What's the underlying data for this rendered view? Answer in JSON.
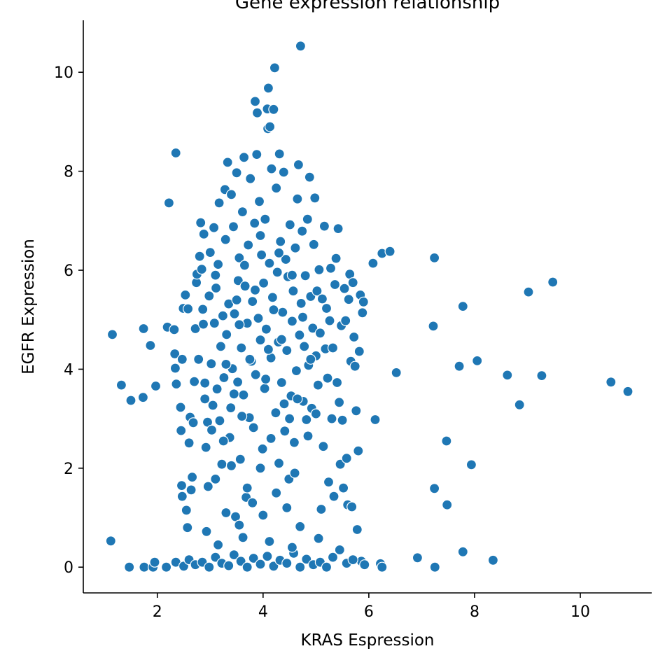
{
  "chart_data": {
    "type": "scatter",
    "title": "Gene expression relationship",
    "xlabel": "KRAS Espression",
    "ylabel": "EGFR Expression",
    "xlim": [
      0.6,
      11.35
    ],
    "ylim": [
      -0.52,
      11.05
    ],
    "xticks": [
      2,
      4,
      6,
      8,
      10
    ],
    "yticks": [
      0,
      2,
      4,
      6,
      8,
      10
    ],
    "grid": false,
    "marker_color": "#1f77b4",
    "marker_edge_color": "#ffffff",
    "series": [
      {
        "points": [
          [
            1.12,
            0.53
          ],
          [
            1.15,
            4.7
          ],
          [
            1.32,
            3.68
          ],
          [
            1.47,
            0.0
          ],
          [
            1.5,
            3.37
          ],
          [
            1.73,
            3.43
          ],
          [
            1.74,
            4.82
          ],
          [
            1.75,
            0.0
          ],
          [
            1.87,
            4.48
          ],
          [
            1.92,
            0.0
          ],
          [
            1.95,
            0.1
          ],
          [
            1.97,
            3.66
          ],
          [
            2.17,
            0.0
          ],
          [
            2.19,
            4.85
          ],
          [
            2.22,
            7.36
          ],
          [
            2.32,
            4.8
          ],
          [
            2.33,
            4.31
          ],
          [
            2.34,
            4.02
          ],
          [
            2.35,
            8.37
          ],
          [
            2.36,
            3.7
          ],
          [
            2.35,
            0.1
          ],
          [
            2.44,
            3.23
          ],
          [
            2.45,
            2.76
          ],
          [
            2.46,
            1.65
          ],
          [
            2.47,
            4.2
          ],
          [
            2.47,
            1.43
          ],
          [
            2.49,
            5.23
          ],
          [
            2.53,
            5.5
          ],
          [
            2.55,
            1.15
          ],
          [
            2.57,
            0.8
          ],
          [
            2.58,
            5.22
          ],
          [
            2.6,
            2.51
          ],
          [
            2.62,
            3.03
          ],
          [
            2.64,
            1.56
          ],
          [
            2.66,
            1.82
          ],
          [
            2.68,
            2.92
          ],
          [
            2.7,
            3.75
          ],
          [
            2.72,
            4.82
          ],
          [
            2.74,
            5.75
          ],
          [
            2.75,
            5.92
          ],
          [
            2.78,
            4.2
          ],
          [
            2.8,
            6.28
          ],
          [
            2.82,
            6.96
          ],
          [
            2.84,
            6.02
          ],
          [
            2.86,
            5.21
          ],
          [
            2.87,
            4.91
          ],
          [
            2.88,
            6.73
          ],
          [
            2.9,
            3.72
          ],
          [
            2.92,
            2.42
          ],
          [
            2.93,
            0.72
          ],
          [
            2.95,
            2.93
          ],
          [
            2.96,
            1.63
          ],
          [
            2.98,
            5.48
          ],
          [
            3.0,
            6.36
          ],
          [
            3.02,
            4.11
          ],
          [
            3.03,
            2.77
          ],
          [
            3.05,
            3.27
          ],
          [
            3.07,
            6.86
          ],
          [
            3.08,
            4.93
          ],
          [
            3.1,
            1.78
          ],
          [
            3.11,
            5.64
          ],
          [
            3.13,
            3.6
          ],
          [
            3.15,
            6.12
          ],
          [
            3.17,
            7.36
          ],
          [
            3.18,
            2.96
          ],
          [
            3.2,
            4.46
          ],
          [
            3.22,
            2.08
          ],
          [
            3.24,
            5.08
          ],
          [
            3.26,
            3.83
          ],
          [
            3.28,
            7.63
          ],
          [
            3.29,
            6.62
          ],
          [
            3.31,
            4.7
          ],
          [
            3.33,
            8.18
          ],
          [
            3.35,
            5.32
          ],
          [
            3.37,
            2.62
          ],
          [
            3.39,
            3.22
          ],
          [
            3.4,
            7.53
          ],
          [
            3.42,
            4.01
          ],
          [
            3.44,
            6.88
          ],
          [
            3.46,
            5.12
          ],
          [
            3.48,
            1.02
          ],
          [
            3.5,
            7.97
          ],
          [
            3.52,
            3.74
          ],
          [
            3.53,
            5.79
          ],
          [
            3.55,
            6.25
          ],
          [
            3.57,
            2.18
          ],
          [
            3.59,
            4.43
          ],
          [
            3.61,
            7.18
          ],
          [
            3.63,
            3.48
          ],
          [
            3.64,
            8.28
          ],
          [
            3.66,
            5.68
          ],
          [
            3.68,
            1.41
          ],
          [
            3.7,
            4.93
          ],
          [
            3.72,
            6.51
          ],
          [
            3.74,
            3.02
          ],
          [
            3.76,
            7.85
          ],
          [
            3.78,
            4.16
          ],
          [
            3.8,
            5.37
          ],
          [
            3.82,
            2.82
          ],
          [
            3.84,
            6.95
          ],
          [
            3.85,
            9.41
          ],
          [
            3.86,
            3.89
          ],
          [
            3.88,
            8.34
          ],
          [
            3.89,
            9.18
          ],
          [
            3.91,
            5.03
          ],
          [
            3.93,
            7.39
          ],
          [
            3.95,
            4.59
          ],
          [
            3.97,
            6.31
          ],
          [
            3.99,
            2.39
          ],
          [
            4.01,
            5.74
          ],
          [
            4.03,
            3.61
          ],
          [
            4.04,
            7.03
          ],
          [
            4.06,
            4.81
          ],
          [
            4.08,
            9.26
          ],
          [
            4.09,
            8.86
          ],
          [
            4.1,
            9.68
          ],
          [
            4.12,
            6.14
          ],
          [
            4.13,
            8.9
          ],
          [
            4.15,
            4.23
          ],
          [
            4.16,
            8.05
          ],
          [
            4.18,
            5.45
          ],
          [
            4.2,
            9.25
          ],
          [
            4.22,
            10.09
          ],
          [
            4.24,
            3.12
          ],
          [
            4.25,
            7.66
          ],
          [
            4.27,
            5.96
          ],
          [
            4.29,
            4.55
          ],
          [
            4.31,
            8.35
          ],
          [
            4.33,
            6.58
          ],
          [
            4.35,
            3.73
          ],
          [
            4.37,
            5.15
          ],
          [
            4.39,
            7.98
          ],
          [
            4.41,
            2.75
          ],
          [
            4.43,
            6.22
          ],
          [
            4.45,
            4.38
          ],
          [
            4.47,
            5.87
          ],
          [
            4.49,
            1.78
          ],
          [
            4.51,
            6.92
          ],
          [
            4.53,
            3.46
          ],
          [
            4.55,
            4.97
          ],
          [
            4.57,
            5.58
          ],
          [
            4.59,
            2.52
          ],
          [
            4.61,
            6.45
          ],
          [
            4.63,
            3.97
          ],
          [
            4.65,
            7.44
          ],
          [
            4.67,
            8.13
          ],
          [
            4.69,
            4.69
          ],
          [
            4.71,
            10.53
          ],
          [
            4.72,
            5.33
          ],
          [
            4.74,
            6.79
          ],
          [
            4.76,
            3.35
          ],
          [
            4.78,
            4.46
          ],
          [
            4.8,
            5.89
          ],
          [
            4.82,
            2.98
          ],
          [
            4.84,
            7.03
          ],
          [
            4.86,
            4.08
          ],
          [
            4.88,
            7.88
          ],
          [
            4.9,
            5.47
          ],
          [
            4.92,
            3.21
          ],
          [
            4.94,
            4.83
          ],
          [
            4.96,
            6.52
          ],
          [
            4.98,
            7.46
          ],
          [
            5.0,
            4.27
          ],
          [
            5.02,
            5.58
          ],
          [
            5.04,
            3.68
          ],
          [
            5.06,
            6.01
          ],
          [
            5.08,
            4.73
          ],
          [
            5.1,
            1.17
          ],
          [
            5.12,
            5.42
          ],
          [
            5.14,
            2.44
          ],
          [
            5.16,
            6.89
          ],
          [
            5.18,
            4.41
          ],
          [
            5.2,
            5.23
          ],
          [
            5.22,
            3.82
          ],
          [
            5.24,
            1.72
          ],
          [
            5.26,
            4.98
          ],
          [
            5.28,
            6.04
          ],
          [
            5.3,
            3.0
          ],
          [
            5.32,
            4.43
          ],
          [
            5.34,
            1.43
          ],
          [
            5.36,
            5.71
          ],
          [
            5.38,
            6.24
          ],
          [
            5.4,
            3.73
          ],
          [
            5.42,
            6.84
          ],
          [
            5.44,
            3.33
          ],
          [
            5.46,
            2.08
          ],
          [
            5.48,
            4.88
          ],
          [
            5.5,
            2.97
          ],
          [
            5.52,
            1.6
          ],
          [
            5.54,
            5.63
          ],
          [
            5.56,
            4.98
          ],
          [
            5.58,
            2.2
          ],
          [
            5.6,
            1.26
          ],
          [
            5.62,
            5.41
          ],
          [
            5.64,
            5.92
          ],
          [
            5.66,
            4.16
          ],
          [
            5.68,
            1.22
          ],
          [
            5.7,
            5.75
          ],
          [
            5.72,
            4.65
          ],
          [
            5.74,
            4.06
          ],
          [
            5.76,
            3.16
          ],
          [
            5.78,
            0.76
          ],
          [
            5.8,
            2.35
          ],
          [
            5.82,
            4.36
          ],
          [
            5.84,
            5.5
          ],
          [
            5.86,
            0.12
          ],
          [
            5.88,
            5.14
          ],
          [
            5.9,
            5.36
          ],
          [
            5.92,
            0.05
          ],
          [
            6.08,
            6.14
          ],
          [
            6.12,
            2.98
          ],
          [
            6.22,
            0.07
          ],
          [
            6.25,
            0.0
          ],
          [
            6.25,
            6.34
          ],
          [
            6.4,
            6.38
          ],
          [
            6.52,
            3.93
          ],
          [
            6.92,
            0.19
          ],
          [
            7.22,
            4.87
          ],
          [
            7.24,
            6.25
          ],
          [
            7.24,
            1.59
          ],
          [
            7.25,
            0.0
          ],
          [
            7.47,
            2.55
          ],
          [
            7.48,
            1.26
          ],
          [
            7.71,
            4.06
          ],
          [
            7.78,
            0.31
          ],
          [
            7.78,
            5.27
          ],
          [
            7.94,
            2.07
          ],
          [
            8.05,
            4.17
          ],
          [
            8.35,
            0.14
          ],
          [
            8.62,
            3.88
          ],
          [
            8.85,
            3.28
          ],
          [
            9.02,
            5.56
          ],
          [
            9.27,
            3.87
          ],
          [
            9.48,
            5.76
          ],
          [
            10.58,
            3.74
          ],
          [
            10.9,
            3.55
          ],
          [
            2.5,
            0.02
          ],
          [
            2.6,
            0.15
          ],
          [
            2.72,
            0.05
          ],
          [
            2.85,
            0.1
          ],
          [
            2.98,
            0.0
          ],
          [
            3.1,
            0.2
          ],
          [
            3.22,
            0.08
          ],
          [
            3.35,
            0.03
          ],
          [
            3.45,
            0.25
          ],
          [
            3.58,
            0.12
          ],
          [
            3.7,
            0.0
          ],
          [
            3.82,
            0.18
          ],
          [
            3.95,
            0.06
          ],
          [
            4.08,
            0.22
          ],
          [
            4.2,
            0.02
          ],
          [
            4.32,
            0.14
          ],
          [
            4.45,
            0.08
          ],
          [
            4.58,
            0.28
          ],
          [
            4.7,
            0.0
          ],
          [
            4.82,
            0.16
          ],
          [
            4.95,
            0.05
          ],
          [
            5.08,
            0.1
          ],
          [
            5.2,
            0.0
          ],
          [
            5.32,
            0.2
          ],
          [
            5.45,
            0.35
          ],
          [
            5.58,
            0.08
          ],
          [
            5.7,
            0.15
          ],
          [
            3.15,
            0.45
          ],
          [
            3.62,
            0.6
          ],
          [
            4.12,
            0.52
          ],
          [
            4.55,
            0.4
          ],
          [
            5.05,
            0.58
          ],
          [
            3.3,
            1.1
          ],
          [
            3.55,
            0.85
          ],
          [
            3.8,
            1.3
          ],
          [
            4.0,
            1.05
          ],
          [
            4.25,
            1.5
          ],
          [
            4.45,
            1.2
          ],
          [
            4.7,
            0.82
          ],
          [
            3.4,
            2.05
          ],
          [
            3.7,
            1.6
          ],
          [
            3.95,
            2.0
          ],
          [
            4.3,
            2.1
          ],
          [
            4.6,
            1.9
          ],
          [
            3.25,
            2.55
          ],
          [
            3.6,
            3.05
          ],
          [
            4.15,
            2.6
          ],
          [
            4.5,
            3.0
          ],
          [
            4.85,
            2.65
          ],
          [
            3.45,
            3.5
          ],
          [
            3.75,
            4.2
          ],
          [
            4.05,
            3.8
          ],
          [
            4.35,
            4.6
          ],
          [
            4.65,
            3.4
          ],
          [
            3.55,
            4.9
          ],
          [
            3.85,
            5.6
          ],
          [
            4.2,
            5.2
          ],
          [
            4.55,
            5.9
          ],
          [
            3.65,
            6.1
          ],
          [
            3.95,
            6.7
          ],
          [
            4.3,
            6.35
          ],
          [
            3.5,
            5.4
          ],
          [
            4.75,
            5.05
          ],
          [
            4.1,
            4.4
          ],
          [
            3.3,
            4.1
          ],
          [
            4.9,
            4.2
          ],
          [
            3.1,
            5.9
          ],
          [
            4.4,
            3.3
          ],
          [
            2.9,
            3.4
          ],
          [
            5.0,
            3.1
          ]
        ]
      }
    ]
  }
}
